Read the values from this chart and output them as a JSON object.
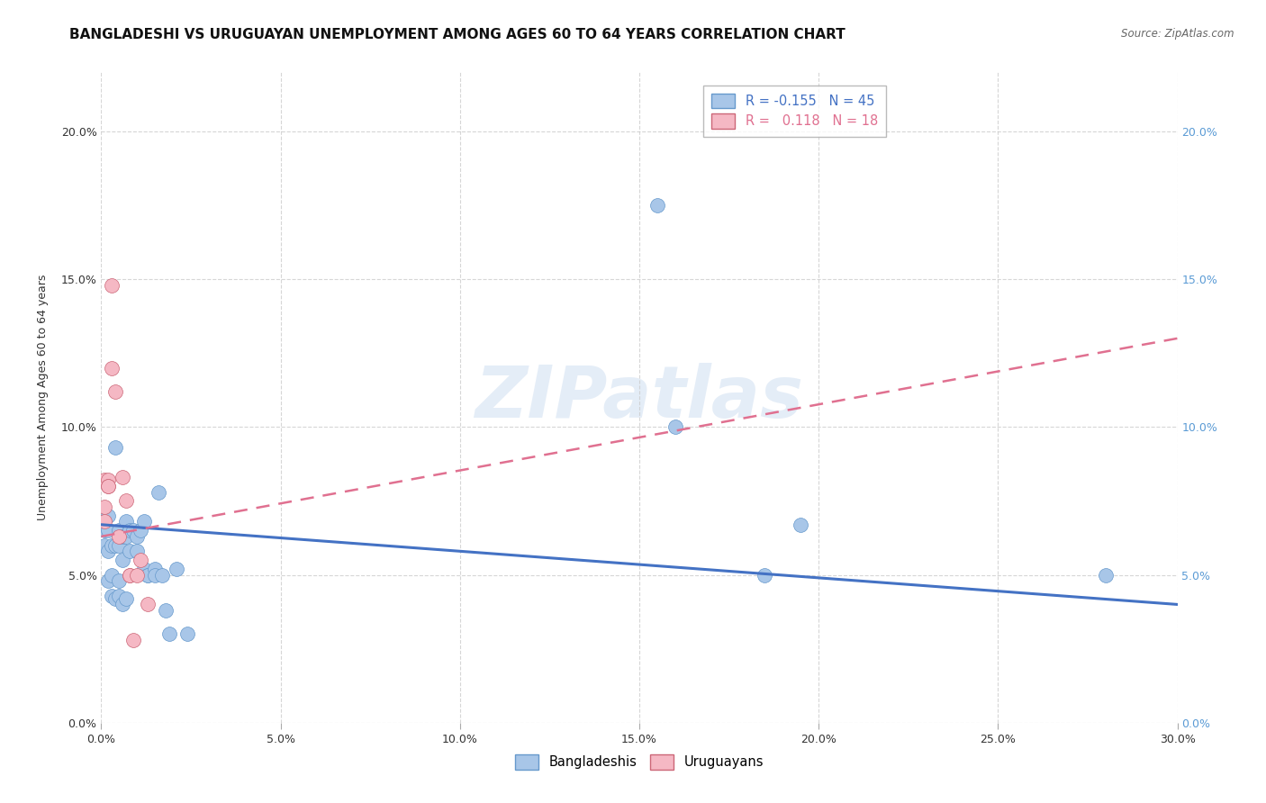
{
  "title": "BANGLADESHI VS URUGUAYAN UNEMPLOYMENT AMONG AGES 60 TO 64 YEARS CORRELATION CHART",
  "source": "Source: ZipAtlas.com",
  "ylabel": "Unemployment Among Ages 60 to 64 years",
  "xlim": [
    0.0,
    0.3
  ],
  "ylim": [
    0.0,
    0.22
  ],
  "xticks": [
    0.0,
    0.05,
    0.1,
    0.15,
    0.2,
    0.25,
    0.3
  ],
  "yticks": [
    0.0,
    0.05,
    0.1,
    0.15,
    0.2
  ],
  "bangladesh_scatter": [
    [
      0.001,
      0.065
    ],
    [
      0.001,
      0.06
    ],
    [
      0.002,
      0.058
    ],
    [
      0.002,
      0.065
    ],
    [
      0.002,
      0.048
    ],
    [
      0.002,
      0.07
    ],
    [
      0.003,
      0.05
    ],
    [
      0.003,
      0.043
    ],
    [
      0.003,
      0.06
    ],
    [
      0.004,
      0.042
    ],
    [
      0.004,
      0.06
    ],
    [
      0.004,
      0.093
    ],
    [
      0.005,
      0.048
    ],
    [
      0.005,
      0.043
    ],
    [
      0.005,
      0.065
    ],
    [
      0.005,
      0.06
    ],
    [
      0.006,
      0.063
    ],
    [
      0.006,
      0.055
    ],
    [
      0.006,
      0.04
    ],
    [
      0.007,
      0.063
    ],
    [
      0.007,
      0.068
    ],
    [
      0.007,
      0.042
    ],
    [
      0.008,
      0.065
    ],
    [
      0.008,
      0.058
    ],
    [
      0.009,
      0.065
    ],
    [
      0.01,
      0.063
    ],
    [
      0.01,
      0.058
    ],
    [
      0.011,
      0.065
    ],
    [
      0.012,
      0.052
    ],
    [
      0.012,
      0.068
    ],
    [
      0.013,
      0.05
    ],
    [
      0.013,
      0.05
    ],
    [
      0.015,
      0.052
    ],
    [
      0.015,
      0.05
    ],
    [
      0.016,
      0.078
    ],
    [
      0.017,
      0.05
    ],
    [
      0.018,
      0.038
    ],
    [
      0.019,
      0.03
    ],
    [
      0.021,
      0.052
    ],
    [
      0.024,
      0.03
    ],
    [
      0.155,
      0.175
    ],
    [
      0.16,
      0.1
    ],
    [
      0.185,
      0.05
    ],
    [
      0.195,
      0.067
    ],
    [
      0.28,
      0.05
    ]
  ],
  "uruguay_scatter": [
    [
      0.001,
      0.068
    ],
    [
      0.001,
      0.073
    ],
    [
      0.001,
      0.082
    ],
    [
      0.002,
      0.082
    ],
    [
      0.002,
      0.08
    ],
    [
      0.002,
      0.08
    ],
    [
      0.003,
      0.148
    ],
    [
      0.003,
      0.12
    ],
    [
      0.004,
      0.112
    ],
    [
      0.005,
      0.063
    ],
    [
      0.006,
      0.083
    ],
    [
      0.007,
      0.075
    ],
    [
      0.008,
      0.05
    ],
    [
      0.008,
      0.05
    ],
    [
      0.009,
      0.028
    ],
    [
      0.01,
      0.05
    ],
    [
      0.011,
      0.055
    ],
    [
      0.013,
      0.04
    ]
  ],
  "bangladesh_line_x": [
    0.0,
    0.3
  ],
  "bangladesh_line_y": [
    0.067,
    0.04
  ],
  "uruguay_line_x": [
    0.0,
    0.3
  ],
  "uruguay_line_y": [
    0.063,
    0.13
  ],
  "bangladesh_scatter_color": "#a8c6e8",
  "bangladesh_scatter_edge": "#6699cc",
  "uruguay_scatter_color": "#f5b8c4",
  "uruguay_scatter_edge": "#cc6677",
  "bangladesh_line_color": "#4472c4",
  "uruguay_line_color": "#e07090",
  "background_color": "#ffffff",
  "grid_color": "#cccccc",
  "watermark": "ZIPatlas",
  "title_fontsize": 11,
  "tick_color_right": "#5b9bd5",
  "legend1_label1": "R = -0.155   N = 45",
  "legend1_label2": "R =   0.118   N = 18",
  "legend2_label1": "Bangladeshis",
  "legend2_label2": "Uruguayans"
}
